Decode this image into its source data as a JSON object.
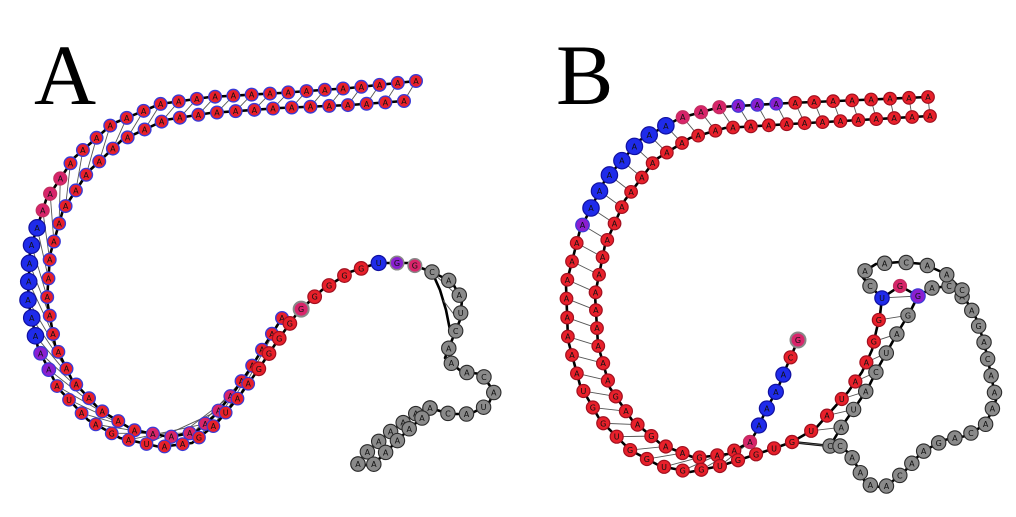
{
  "panels": [
    {
      "id": "A",
      "label": "A"
    },
    {
      "id": "B",
      "label": "B"
    }
  ],
  "nucleotide_letters": [
    "A",
    "C",
    "G",
    "U"
  ],
  "palette": {
    "unpaired_gray": "#8a8a8a",
    "paired_red": "#e8202a",
    "purple": "#8a1fd0",
    "blue": "#1f2bea",
    "magenta": "#d8246a",
    "outline_blue": "#3a3ad6",
    "backbone": "#000000"
  }
}
